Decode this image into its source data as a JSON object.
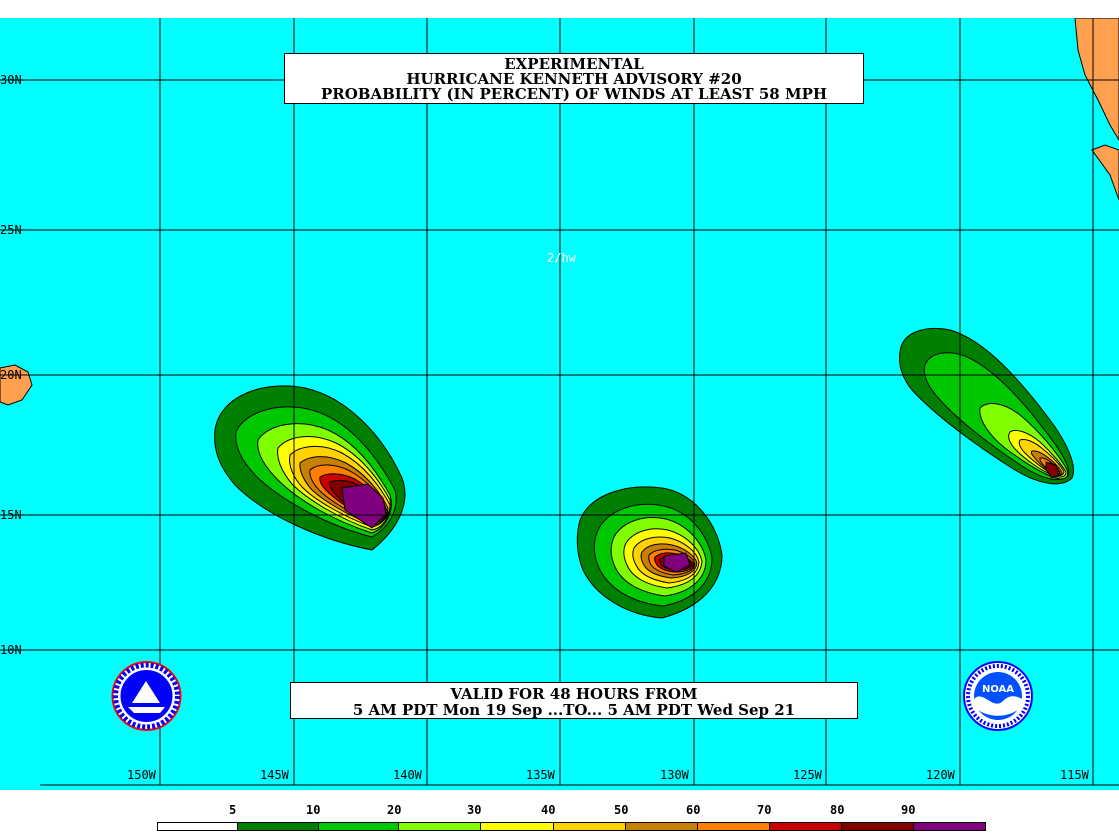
{
  "title": {
    "line1": "EXPERIMENTAL",
    "line2": "HURRICANE KENNETH ADVISORY #20",
    "line3": "PROBABILITY (IN PERCENT) OF WINDS AT LEAST 58 MPH"
  },
  "valid": {
    "line1": "VALID FOR 48 HOURS FROM",
    "line2": "5 AM PDT Mon 19 Sep ...TO... 5 AM PDT Wed Sep 21"
  },
  "annotation": "2/hw",
  "lat_labels": [
    "30N",
    "25N",
    "20N",
    "15N",
    "10N"
  ],
  "lon_labels": [
    "150W",
    "145W",
    "140W",
    "135W",
    "130W",
    "125W",
    "120W",
    "115W"
  ],
  "legend": {
    "labels": [
      "5",
      "10",
      "20",
      "30",
      "40",
      "50",
      "60",
      "70",
      "80",
      "90"
    ],
    "colors": [
      "#ffffff",
      "#008000",
      "#00c800",
      "#80ff00",
      "#ffff00",
      "#ffd200",
      "#c88000",
      "#ff8000",
      "#c80000",
      "#800000",
      "#800080"
    ]
  },
  "colors": {
    "ocean": "#00ffff",
    "land": "#ffa050",
    "grid": "#000000"
  },
  "logos": {
    "left": "nws-logo",
    "right": "noaa-logo",
    "right_text": "NOAA"
  }
}
